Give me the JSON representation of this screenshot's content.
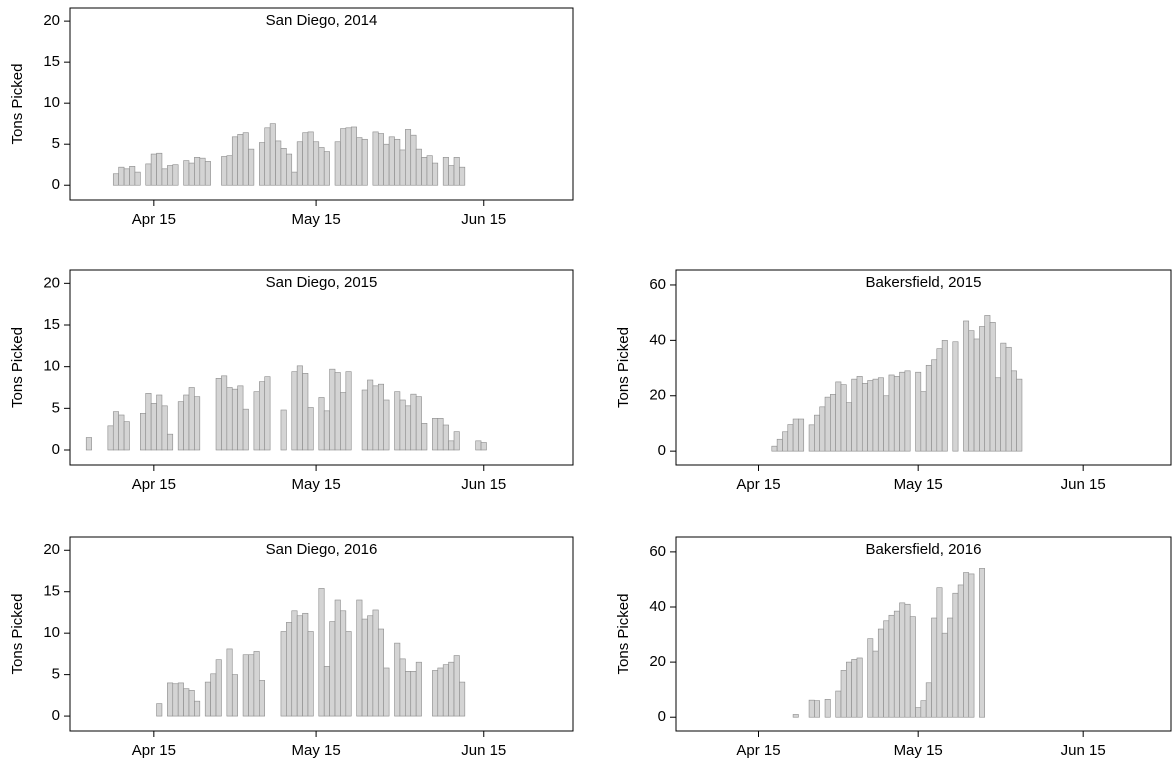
{
  "chart_data": [
    {
      "type": "bar",
      "title": "San Diego, 2014",
      "y_label": "Tons Picked",
      "color": "#d4d4d4",
      "x": [
        98,
        99,
        100,
        101,
        102,
        104,
        105,
        106,
        107,
        108,
        109,
        111,
        112,
        113,
        114,
        115,
        118,
        119,
        120,
        121,
        122,
        123,
        125,
        126,
        127,
        128,
        129,
        130,
        131,
        132,
        133,
        134,
        135,
        136,
        137,
        139,
        140,
        141,
        142,
        143,
        144,
        146,
        147,
        148,
        149,
        150,
        151,
        152,
        153,
        154,
        155,
        156,
        157,
        159,
        160,
        161,
        162
      ],
      "values": [
        1.4,
        2.2,
        2.0,
        2.3,
        1.6,
        2.6,
        3.8,
        3.9,
        2.0,
        2.4,
        2.5,
        3.0,
        2.7,
        3.4,
        3.3,
        2.9,
        3.5,
        3.6,
        5.9,
        6.2,
        6.4,
        4.4,
        5.2,
        7.0,
        7.5,
        5.4,
        4.5,
        3.8,
        1.6,
        5.3,
        6.4,
        6.5,
        5.3,
        4.6,
        4.1,
        5.3,
        6.9,
        7.0,
        7.1,
        5.8,
        5.6,
        6.5,
        6.3,
        5.0,
        5.9,
        5.6,
        4.3,
        6.8,
        6.1,
        4.4,
        3.4,
        3.6,
        2.7,
        3.4,
        2.4,
        3.4,
        2.2
      ],
      "xlim": [
        89.5,
        182.5
      ],
      "xticks": [
        {
          "value": 105,
          "label": "Apr 15"
        },
        {
          "value": 135,
          "label": "May 15"
        },
        {
          "value": 166,
          "label": "Jun 15"
        }
      ],
      "ylim": [
        -1.8,
        21.6
      ],
      "yticks": [
        0,
        5,
        10,
        15,
        20
      ]
    },
    {
      "type": "bar",
      "title": "San Diego, 2015",
      "y_label": "Tons Picked",
      "color": "#d4d4d4",
      "x": [
        93,
        97,
        98,
        99,
        100,
        103,
        104,
        105,
        106,
        107,
        108,
        110,
        111,
        112,
        113,
        117,
        118,
        119,
        120,
        121,
        122,
        124,
        125,
        126,
        129,
        131,
        132,
        133,
        134,
        136,
        137,
        138,
        139,
        140,
        141,
        144,
        145,
        146,
        147,
        148,
        150,
        151,
        152,
        153,
        154,
        155,
        157,
        158,
        159,
        160,
        161,
        165,
        166
      ],
      "values": [
        1.5,
        2.9,
        4.6,
        4.2,
        3.4,
        4.4,
        6.8,
        5.6,
        6.6,
        5.3,
        1.9,
        5.8,
        6.6,
        7.5,
        6.4,
        8.6,
        8.9,
        7.5,
        7.3,
        7.7,
        4.9,
        7.0,
        8.2,
        8.8,
        4.8,
        9.4,
        10.1,
        9.2,
        5.1,
        6.3,
        4.7,
        9.7,
        9.3,
        6.9,
        9.4,
        7.2,
        8.4,
        7.7,
        7.9,
        6.0,
        7.0,
        6.0,
        5.3,
        6.7,
        6.4,
        3.2,
        3.8,
        3.8,
        3.0,
        1.1,
        2.2,
        1.1,
        0.9
      ],
      "xlim": [
        89.5,
        182.5
      ],
      "xticks": [
        {
          "value": 105,
          "label": "Apr 15"
        },
        {
          "value": 135,
          "label": "May 15"
        },
        {
          "value": 166,
          "label": "Jun 15"
        }
      ],
      "ylim": [
        -1.8,
        21.6
      ],
      "yticks": [
        0,
        5,
        10,
        15,
        20
      ]
    },
    {
      "type": "bar",
      "title": "Bakersfield, 2015",
      "y_label": "Tons Picked",
      "color": "#d4d4d4",
      "x": [
        108,
        109,
        110,
        111,
        112,
        113,
        115,
        116,
        117,
        118,
        119,
        120,
        121,
        122,
        123,
        124,
        125,
        126,
        127,
        128,
        129,
        130,
        131,
        132,
        133,
        135,
        136,
        137,
        138,
        139,
        140,
        142,
        144,
        145,
        146,
        147,
        148,
        149,
        150,
        151,
        152,
        153,
        154
      ],
      "values": [
        1.8,
        4.3,
        7.0,
        9.6,
        11.6,
        11.6,
        9.5,
        13.0,
        16.0,
        19.5,
        20.5,
        25.0,
        24.0,
        17.5,
        26.0,
        27.0,
        24.5,
        25.5,
        26.0,
        26.5,
        20.0,
        27.5,
        27.0,
        28.5,
        29.0,
        28.5,
        21.5,
        31.0,
        33.0,
        37.0,
        40.0,
        39.5,
        47.0,
        43.5,
        40.5,
        45.0,
        49.0,
        46.5,
        26.5,
        39.0,
        37.5,
        29.0,
        26.0
      ],
      "xlim": [
        89.5,
        182.5
      ],
      "xticks": [
        {
          "value": 105,
          "label": "Apr 15"
        },
        {
          "value": 135,
          "label": "May 15"
        },
        {
          "value": 166,
          "label": "Jun 15"
        }
      ],
      "ylim": [
        -5,
        65.4
      ],
      "yticks": [
        0,
        20,
        40,
        60
      ]
    },
    {
      "type": "bar",
      "title": "San Diego, 2016",
      "y_label": "Tons Picked",
      "color": "#d4d4d4",
      "x": [
        106,
        108,
        109,
        110,
        111,
        112,
        113,
        115,
        116,
        117,
        119,
        120,
        122,
        123,
        124,
        125,
        129,
        130,
        131,
        132,
        133,
        134,
        136,
        137,
        138,
        139,
        140,
        141,
        143,
        144,
        145,
        146,
        147,
        148,
        150,
        151,
        152,
        153,
        154,
        157,
        158,
        159,
        160,
        161,
        162
      ],
      "values": [
        1.5,
        4.0,
        3.9,
        4.0,
        3.3,
        3.1,
        1.8,
        4.1,
        5.1,
        6.8,
        8.1,
        5.0,
        7.4,
        7.4,
        7.8,
        4.3,
        10.2,
        11.3,
        12.7,
        12.1,
        12.4,
        10.2,
        15.4,
        6.0,
        11.4,
        14.0,
        12.7,
        10.2,
        14.0,
        11.7,
        12.1,
        12.8,
        10.5,
        5.8,
        8.8,
        6.9,
        5.4,
        5.4,
        6.5,
        5.5,
        5.8,
        6.2,
        6.5,
        7.3,
        4.1
      ],
      "xlim": [
        89.5,
        182.5
      ],
      "xticks": [
        {
          "value": 105,
          "label": "Apr 15"
        },
        {
          "value": 135,
          "label": "May 15"
        },
        {
          "value": 166,
          "label": "Jun 15"
        }
      ],
      "ylim": [
        -1.8,
        21.6
      ],
      "yticks": [
        0,
        5,
        10,
        15,
        20
      ]
    },
    {
      "type": "bar",
      "title": "Bakersfield, 2016",
      "y_label": "Tons Picked",
      "color": "#d4d4d4",
      "x": [
        112,
        115,
        116,
        118,
        120,
        121,
        122,
        123,
        124,
        126,
        127,
        128,
        129,
        130,
        131,
        132,
        133,
        134,
        135,
        136,
        137,
        138,
        139,
        140,
        141,
        142,
        143,
        144,
        145,
        147
      ],
      "values": [
        1.0,
        6.2,
        6.0,
        6.5,
        9.5,
        17.0,
        20.0,
        21.0,
        21.5,
        28.5,
        24.0,
        32.0,
        35.0,
        37.0,
        38.5,
        41.5,
        41.0,
        36.5,
        3.5,
        6.0,
        12.5,
        36.0,
        47.0,
        30.5,
        36.0,
        45.0,
        48.0,
        52.5,
        52.0,
        54.0
      ],
      "xlim": [
        89.5,
        182.5
      ],
      "xticks": [
        {
          "value": 105,
          "label": "Apr 15"
        },
        {
          "value": 135,
          "label": "May 15"
        },
        {
          "value": 166,
          "label": "Jun 15"
        }
      ],
      "ylim": [
        -5,
        65.4
      ],
      "yticks": [
        0,
        20,
        40,
        60
      ]
    }
  ]
}
